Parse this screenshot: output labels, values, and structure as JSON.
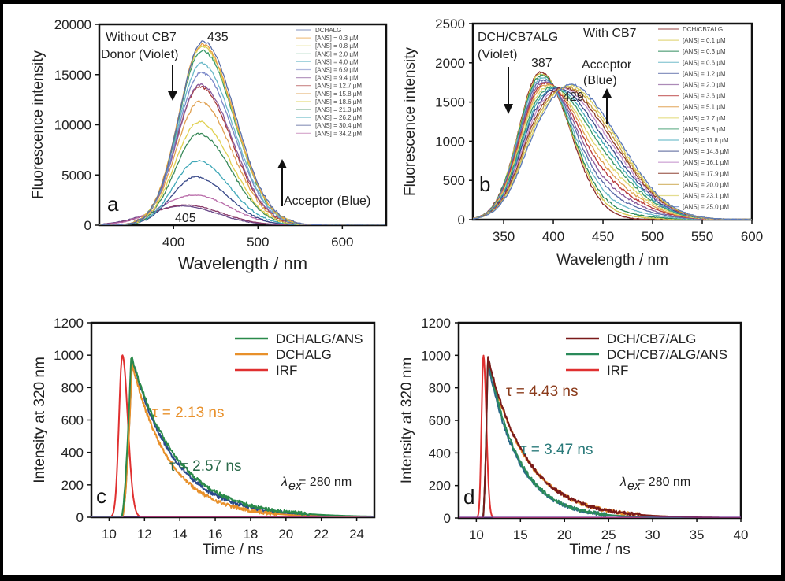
{
  "chart_data": [
    {
      "id": "a",
      "type": "line",
      "panel_label": "a",
      "xlabel": "Wavelength / nm",
      "ylabel": "Fluorescence intensity",
      "xlim": [
        312,
        652
      ],
      "ylim": [
        0,
        20000
      ],
      "xticks": [
        400,
        500,
        600
      ],
      "yticks": [
        0,
        5000,
        10000,
        15000,
        20000
      ],
      "grid": false,
      "legend_position": "top-right",
      "annotations": {
        "condition": "Without CB7",
        "donor": "Donor (Violet)",
        "acceptor": "Acceptor (Blue)",
        "peak_main": "435",
        "peak_low": "405"
      },
      "series": [
        {
          "name": "DCHALG",
          "color": "#5a6fa8",
          "peak_nm": 435,
          "peak": 18300
        },
        {
          "name": "[ANS] = 0.3 µM",
          "color": "#e8a040",
          "peak_nm": 434,
          "peak": 18000
        },
        {
          "name": "[ANS] = 0.8 µM",
          "color": "#d8d050",
          "peak_nm": 434,
          "peak": 17800
        },
        {
          "name": "[ANS] = 2.0 µM",
          "color": "#3a9a6a",
          "peak_nm": 434,
          "peak": 17400
        },
        {
          "name": "[ANS] = 4.0 µM",
          "color": "#6ab8c8",
          "peak_nm": 433,
          "peak": 16100
        },
        {
          "name": "[ANS] = 6.9 µM",
          "color": "#7a88c8",
          "peak_nm": 433,
          "peak": 15200
        },
        {
          "name": "[ANS] = 9.4 µM",
          "color": "#8a5a9a",
          "peak_nm": 432,
          "peak": 14000
        },
        {
          "name": "[ANS] = 12.7 µM",
          "color": "#a83a3a",
          "peak_nm": 431,
          "peak": 13800
        },
        {
          "name": "[ANS] = 15.8 µM",
          "color": "#e0a050",
          "peak_nm": 431,
          "peak": 12300
        },
        {
          "name": "[ANS] = 18.6 µM",
          "color": "#e0d050",
          "peak_nm": 430,
          "peak": 10300
        },
        {
          "name": "[ANS] = 21.3 µM",
          "color": "#3a8a5a",
          "peak_nm": 430,
          "peak": 9100
        },
        {
          "name": "[ANS] = 26.2 µM",
          "color": "#40a8b8",
          "peak_nm": 428,
          "peak": 6400
        },
        {
          "name": "[ANS] = 30.4 µM",
          "color": "#3a4a8a",
          "peak_nm": 426,
          "peak": 4800
        },
        {
          "name": "[ANS] = 34.2 µM",
          "color": "#b86aa8",
          "peak_nm": 424,
          "peak": 3000
        }
      ],
      "extra_low_curves": [
        {
          "color": "#8a3a6a",
          "peak_nm": 415,
          "peak": 2000
        },
        {
          "color": "#6a4a8a",
          "peak_nm": 410,
          "peak": 1900
        }
      ]
    },
    {
      "id": "b",
      "type": "line",
      "panel_label": "b",
      "xlabel": "Wavelength / nm",
      "ylabel": "Fluorescence intensity",
      "xlim": [
        319,
        600
      ],
      "ylim": [
        0,
        2500
      ],
      "xticks": [
        350,
        400,
        450,
        500,
        550,
        600
      ],
      "yticks": [
        0,
        500,
        1000,
        1500,
        2000,
        2500
      ],
      "grid": false,
      "legend_position": "top-right",
      "annotations": {
        "donor": "DCH/CB7ALG",
        "donor_sub": "(Violet)",
        "condition": "With CB7",
        "acceptor": "Acceptor",
        "acceptor_sub": "(Blue)",
        "peak_violet": "387",
        "peak_blue": "429"
      },
      "series": [
        {
          "name": "DCH/CB7ALG",
          "color": "#8a2a2a",
          "violet": 1880,
          "blue": 0
        },
        {
          "name": "[ANS] = 0.1 µM",
          "color": "#d8c850",
          "violet": 1830,
          "blue": 60
        },
        {
          "name": "[ANS] = 0.3 µM",
          "color": "#2a8a5a",
          "violet": 1780,
          "blue": 120
        },
        {
          "name": "[ANS] = 0.6 µM",
          "color": "#6ab8c8",
          "violet": 1700,
          "blue": 220
        },
        {
          "name": "[ANS] = 1.2 µM",
          "color": "#5a6aa8",
          "violet": 1620,
          "blue": 330
        },
        {
          "name": "[ANS] = 2.0 µM",
          "color": "#8a5a9a",
          "violet": 1540,
          "blue": 430
        },
        {
          "name": "[ANS] = 3.6 µM",
          "color": "#b83a3a",
          "violet": 1460,
          "blue": 540
        },
        {
          "name": "[ANS] = 5.1 µM",
          "color": "#e0a050",
          "violet": 1380,
          "blue": 640
        },
        {
          "name": "[ANS] = 7.7 µM",
          "color": "#e0d870",
          "violet": 1290,
          "blue": 750
        },
        {
          "name": "[ANS] = 9.8 µM",
          "color": "#3a9a6a",
          "violet": 1200,
          "blue": 860
        },
        {
          "name": "[ANS] = 11.8 µM",
          "color": "#40a8b8",
          "violet": 1110,
          "blue": 960
        },
        {
          "name": "[ANS] = 14.3 µM",
          "color": "#3a4a8a",
          "violet": 1020,
          "blue": 1060
        },
        {
          "name": "[ANS] = 16.1 µM",
          "color": "#c08ac8",
          "violet": 930,
          "blue": 1150
        },
        {
          "name": "[ANS] = 17.9 µM",
          "color": "#8a3a2a",
          "violet": 850,
          "blue": 1230
        },
        {
          "name": "[ANS] = 20.0 µM",
          "color": "#c8a040",
          "violet": 770,
          "blue": 1300
        },
        {
          "name": "[ANS] = 23.1 µM",
          "color": "#d8d060",
          "violet": 690,
          "blue": 1370
        },
        {
          "name": "[ANS] = 25.0 µM",
          "color": "#5a78b8",
          "violet": 620,
          "blue": 1430
        }
      ]
    },
    {
      "id": "c",
      "type": "line",
      "panel_label": "c",
      "xlabel": "Time / ns",
      "ylabel": "Intensity at 320 nm",
      "xlim": [
        9,
        25
      ],
      "ylim": [
        0,
        1200
      ],
      "xticks": [
        10,
        12,
        14,
        16,
        18,
        20,
        22,
        24
      ],
      "yticks": [
        0,
        200,
        400,
        600,
        800,
        1000,
        1200
      ],
      "grid": false,
      "legend_position": "top-right",
      "annotations": {
        "tau1": "τ = 2.13 ns",
        "tau1_color": "#e8902a",
        "tau2": "τ = 2.57 ns",
        "tau2_color": "#2a6a4a",
        "excitation_prefix": "λ",
        "excitation_sub": "ex",
        "excitation_value": "= 280 nm"
      },
      "series": [
        {
          "name": "DCHALG/ANS",
          "color": "#2a8a4a",
          "kind": "decay",
          "t_peak": 11.25,
          "tau": 2.57,
          "peak": 1000,
          "rise": 0.55
        },
        {
          "name": "DCHALG",
          "color": "#e8902a",
          "kind": "decay",
          "t_peak": 11.3,
          "tau": 2.13,
          "peak": 950,
          "rise": 0.55
        },
        {
          "name": "IRF",
          "color": "#e03030",
          "kind": "irf",
          "t_peak": 10.75,
          "peak": 1000,
          "width": 0.55
        }
      ],
      "unlabeled_series": [
        {
          "color": "#2a4a8a",
          "kind": "decay",
          "t_peak": 11.3,
          "tau": 2.4,
          "peak": 975,
          "rise": 0.55
        }
      ]
    },
    {
      "id": "d",
      "type": "line",
      "panel_label": "d",
      "xlabel": "Time / ns",
      "ylabel": "Intensity at 320 nm",
      "xlim": [
        8,
        40
      ],
      "ylim": [
        0,
        1200
      ],
      "xticks": [
        10,
        15,
        20,
        25,
        30,
        35,
        40
      ],
      "yticks": [
        0,
        200,
        400,
        600,
        800,
        1000,
        1200
      ],
      "grid": false,
      "legend_position": "top-right",
      "annotations": {
        "tau1": "τ = 4.43 ns",
        "tau1_color": "#8a3a1a",
        "tau2": "τ = 3.47 ns",
        "tau2_color": "#2a7a7a",
        "excitation_prefix": "λ",
        "excitation_sub": "ex",
        "excitation_value": "= 280 nm"
      },
      "series": [
        {
          "name": "DCH/CB7/ALG",
          "color": "#7a1a1a",
          "kind": "decay",
          "t_peak": 11.3,
          "tau": 4.43,
          "peak": 990,
          "rise": 0.55
        },
        {
          "name": "DCH/CB7/ALG/ANS",
          "color": "#2a8a5a",
          "kind": "decay",
          "t_peak": 11.3,
          "tau": 3.47,
          "peak": 1000,
          "rise": 0.55
        },
        {
          "name": "IRF",
          "color": "#e03030",
          "kind": "irf",
          "t_peak": 10.8,
          "peak": 1000,
          "width": 0.6
        }
      ],
      "unlabeled_series": [
        {
          "color": "#e8902a",
          "kind": "decay",
          "t_peak": 11.3,
          "tau": 4.43,
          "peak": 980,
          "rise": 0.55
        },
        {
          "color": "#2a6a8a",
          "kind": "decay",
          "t_peak": 11.3,
          "tau": 3.47,
          "peak": 960,
          "rise": 0.55
        }
      ]
    }
  ]
}
